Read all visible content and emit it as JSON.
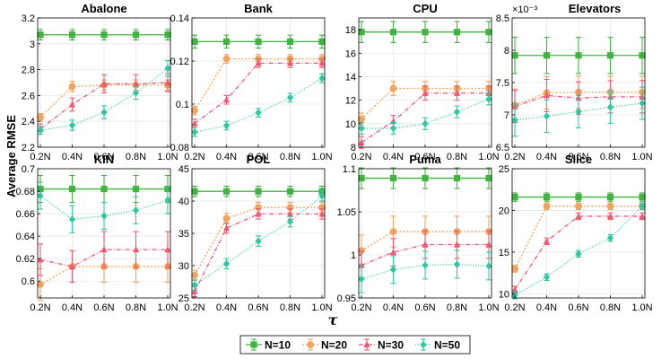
{
  "figure": {
    "ylabel": "Average RMSE",
    "xlabel": "τ",
    "legend": {
      "placement": "bottom-center"
    }
  },
  "chart_data": [
    {
      "type": "line",
      "title": "Abalone",
      "categories": [
        "0.2N",
        "0.4N",
        "0.6N",
        "0.8N",
        "1.0N"
      ],
      "ylim": [
        2.2,
        3.2
      ],
      "yticks": [
        2.2,
        2.4,
        2.6,
        2.8,
        3.0,
        3.2
      ],
      "ytick_labels": [
        "2.2",
        "2.4",
        "2.6",
        "2.8",
        "3",
        "3.2"
      ],
      "series": [
        {
          "name": "N=10",
          "values": [
            3.07,
            3.07,
            3.07,
            3.07,
            3.07
          ],
          "err": [
            0.04,
            0.04,
            0.04,
            0.04,
            0.04
          ]
        },
        {
          "name": "N=20",
          "values": [
            2.43,
            2.67,
            2.68,
            2.68,
            2.68
          ],
          "err": [
            0.03,
            0.04,
            0.04,
            0.04,
            0.04
          ]
        },
        {
          "name": "N=30",
          "values": [
            2.34,
            2.53,
            2.69,
            2.69,
            2.7
          ],
          "err": [
            0.04,
            0.05,
            0.07,
            0.07,
            0.07
          ]
        },
        {
          "name": "N=50",
          "values": [
            2.33,
            2.37,
            2.47,
            2.62,
            2.81
          ],
          "err": [
            0.03,
            0.04,
            0.05,
            0.05,
            0.06
          ]
        }
      ]
    },
    {
      "type": "line",
      "title": "Bank",
      "categories": [
        "0.2N",
        "0.4N",
        "0.6N",
        "0.8N",
        "1.0N"
      ],
      "ylim": [
        0.08,
        0.14
      ],
      "yticks": [
        0.08,
        0.1,
        0.12,
        0.14
      ],
      "ytick_labels": [
        "0.08",
        "0.1",
        "0.12",
        "0.14"
      ],
      "series": [
        {
          "name": "N=10",
          "values": [
            0.129,
            0.129,
            0.129,
            0.129,
            0.129
          ],
          "err": [
            0.003,
            0.003,
            0.003,
            0.003,
            0.003
          ]
        },
        {
          "name": "N=20",
          "values": [
            0.097,
            0.121,
            0.121,
            0.121,
            0.121
          ],
          "err": [
            0.002,
            0.002,
            0.002,
            0.002,
            0.002
          ]
        },
        {
          "name": "N=30",
          "values": [
            0.091,
            0.102,
            0.119,
            0.119,
            0.119
          ],
          "err": [
            0.002,
            0.002,
            0.002,
            0.002,
            0.002
          ]
        },
        {
          "name": "N=50",
          "values": [
            0.087,
            0.09,
            0.096,
            0.103,
            0.112
          ],
          "err": [
            0.002,
            0.002,
            0.002,
            0.002,
            0.002
          ]
        }
      ]
    },
    {
      "type": "line",
      "title": "CPU",
      "categories": [
        "0.2N",
        "0.4N",
        "0.6N",
        "0.8N",
        "1.0N"
      ],
      "ylim": [
        8,
        19
      ],
      "yticks": [
        8,
        10,
        12,
        14,
        16,
        18
      ],
      "ytick_labels": [
        "8",
        "10",
        "12",
        "14",
        "16",
        "18"
      ],
      "series": [
        {
          "name": "N=10",
          "values": [
            17.8,
            17.8,
            17.8,
            17.8,
            17.8
          ],
          "err": [
            0.9,
            0.9,
            0.9,
            0.9,
            0.9
          ]
        },
        {
          "name": "N=20",
          "values": [
            10.4,
            13.0,
            13.0,
            13.0,
            13.0
          ],
          "err": [
            0.5,
            0.6,
            0.6,
            0.6,
            0.6
          ]
        },
        {
          "name": "N=30",
          "values": [
            8.4,
            10.2,
            12.6,
            12.6,
            12.6
          ],
          "err": [
            0.5,
            0.5,
            0.6,
            0.6,
            0.6
          ]
        },
        {
          "name": "N=50",
          "values": [
            9.6,
            9.6,
            10.0,
            11.0,
            12.1
          ],
          "err": [
            0.5,
            0.5,
            0.5,
            0.5,
            0.5
          ]
        }
      ]
    },
    {
      "type": "line",
      "title": "Elevators",
      "categories": [
        "0.2N",
        "0.4N",
        "0.6N",
        "0.8N",
        "1.0N"
      ],
      "ylim": [
        6.5,
        8.5
      ],
      "yticks": [
        6.5,
        7,
        7.5,
        8,
        8.5
      ],
      "ytick_labels": [
        "6.5",
        "7",
        "7.5",
        "8",
        "8.5"
      ],
      "scale_label": "×10⁻³",
      "series": [
        {
          "name": "N=10",
          "values": [
            7.92,
            7.92,
            7.92,
            7.92,
            7.92
          ],
          "err": [
            0.28,
            0.28,
            0.28,
            0.28,
            0.28
          ]
        },
        {
          "name": "N=20",
          "values": [
            7.15,
            7.34,
            7.35,
            7.35,
            7.35
          ],
          "err": [
            0.25,
            0.25,
            0.25,
            0.25,
            0.25
          ]
        },
        {
          "name": "N=30",
          "values": [
            7.13,
            7.3,
            7.26,
            7.28,
            7.28
          ],
          "err": [
            0.25,
            0.25,
            0.25,
            0.25,
            0.25
          ]
        },
        {
          "name": "N=50",
          "values": [
            6.92,
            6.98,
            7.05,
            7.12,
            7.18
          ],
          "err": [
            0.25,
            0.25,
            0.25,
            0.25,
            0.25
          ]
        }
      ]
    },
    {
      "type": "line",
      "title": "KIN",
      "categories": [
        "0.2N",
        "0.4N",
        "0.6N",
        "0.8N",
        "1.0N"
      ],
      "ylim": [
        0.585,
        0.7
      ],
      "yticks": [
        0.6,
        0.62,
        0.64,
        0.66,
        0.68,
        0.7
      ],
      "ytick_labels": [
        "0.6",
        "0.62",
        "0.64",
        "0.66",
        "0.68",
        "0.7"
      ],
      "series": [
        {
          "name": "N=10",
          "values": [
            0.682,
            0.682,
            0.682,
            0.682,
            0.682
          ],
          "err": [
            0.012,
            0.012,
            0.012,
            0.012,
            0.012
          ]
        },
        {
          "name": "N=20",
          "values": [
            0.597,
            0.613,
            0.613,
            0.613,
            0.613
          ],
          "err": [
            0.014,
            0.014,
            0.014,
            0.014,
            0.014
          ]
        },
        {
          "name": "N=30",
          "values": [
            0.619,
            0.613,
            0.628,
            0.628,
            0.628
          ],
          "err": [
            0.014,
            0.014,
            0.016,
            0.016,
            0.016
          ]
        },
        {
          "name": "N=50",
          "values": [
            0.676,
            0.655,
            0.658,
            0.663,
            0.672
          ],
          "err": [
            0.012,
            0.012,
            0.012,
            0.012,
            0.012
          ]
        }
      ]
    },
    {
      "type": "line",
      "title": "POL",
      "categories": [
        "0.2N",
        "0.4N",
        "0.6N",
        "0.8N",
        "1.0N"
      ],
      "ylim": [
        25,
        45
      ],
      "yticks": [
        25,
        30,
        35,
        40,
        45
      ],
      "ytick_labels": [
        "25",
        "30",
        "35",
        "40",
        "45"
      ],
      "series": [
        {
          "name": "N=10",
          "values": [
            41.5,
            41.5,
            41.5,
            41.5,
            41.5
          ],
          "err": [
            0.8,
            0.8,
            0.8,
            0.8,
            0.8
          ]
        },
        {
          "name": "N=20",
          "values": [
            28.5,
            37.3,
            39.0,
            39.0,
            39.0
          ],
          "err": [
            0.8,
            0.8,
            0.8,
            0.8,
            0.8
          ]
        },
        {
          "name": "N=30",
          "values": [
            26.0,
            35.8,
            38.0,
            38.0,
            38.0
          ],
          "err": [
            0.8,
            0.8,
            0.8,
            0.8,
            0.8
          ]
        },
        {
          "name": "N=50",
          "values": [
            27.0,
            30.3,
            33.8,
            36.8,
            40.8
          ],
          "err": [
            0.8,
            0.8,
            0.8,
            0.8,
            0.8
          ]
        }
      ]
    },
    {
      "type": "line",
      "title": "Puma",
      "categories": [
        "0.2N",
        "0.4N",
        "0.6N",
        "0.8N",
        "1.0N"
      ],
      "ylim": [
        0.95,
        1.1
      ],
      "yticks": [
        0.95,
        1.0,
        1.05,
        1.1
      ],
      "ytick_labels": [
        "0.95",
        "1",
        "1.05",
        "1.1"
      ],
      "series": [
        {
          "name": "N=10",
          "values": [
            1.089,
            1.089,
            1.089,
            1.089,
            1.089
          ],
          "err": [
            0.012,
            0.012,
            0.012,
            0.012,
            0.012
          ]
        },
        {
          "name": "N=20",
          "values": [
            1.005,
            1.027,
            1.027,
            1.027,
            1.027
          ],
          "err": [
            0.018,
            0.018,
            0.018,
            0.018,
            0.018
          ]
        },
        {
          "name": "N=30",
          "values": [
            0.988,
            1.003,
            1.012,
            1.012,
            1.012
          ],
          "err": [
            0.016,
            0.016,
            0.016,
            0.016,
            0.016
          ]
        },
        {
          "name": "N=50",
          "values": [
            0.972,
            0.983,
            0.988,
            0.989,
            0.987
          ],
          "err": [
            0.016,
            0.016,
            0.016,
            0.016,
            0.016
          ]
        }
      ]
    },
    {
      "type": "line",
      "title": "Slice",
      "categories": [
        "0.2N",
        "0.4N",
        "0.6N",
        "0.8N",
        "1.0N"
      ],
      "ylim": [
        9.5,
        25
      ],
      "yticks": [
        10,
        15,
        20,
        25
      ],
      "ytick_labels": [
        "10",
        "15",
        "20",
        "25"
      ],
      "series": [
        {
          "name": "N=10",
          "values": [
            21.6,
            21.6,
            21.6,
            21.6,
            21.6
          ],
          "err": [
            0.5,
            0.5,
            0.5,
            0.5,
            0.5
          ]
        },
        {
          "name": "N=20",
          "values": [
            13.0,
            20.5,
            20.5,
            20.5,
            20.5
          ],
          "err": [
            0.4,
            0.4,
            0.4,
            0.4,
            0.4
          ]
        },
        {
          "name": "N=30",
          "values": [
            10.5,
            16.3,
            19.3,
            19.3,
            19.3
          ],
          "err": [
            0.4,
            0.4,
            0.4,
            0.4,
            0.4
          ]
        },
        {
          "name": "N=50",
          "values": [
            9.8,
            12.0,
            14.8,
            16.7,
            20.5
          ],
          "err": [
            0.4,
            0.4,
            0.4,
            0.4,
            0.4
          ]
        }
      ]
    }
  ],
  "styles": {
    "N=10": {
      "color": "#3fb43f",
      "marker": "square",
      "dash": ""
    },
    "N=20": {
      "color": "#f2a35e",
      "marker": "circle",
      "dash": "2,2"
    },
    "N=30": {
      "color": "#ee5a74",
      "marker": "triangle",
      "dash": "5,2,1,2"
    },
    "N=50": {
      "color": "#2ec9a2",
      "marker": "diamond",
      "dash": "1,2"
    }
  }
}
